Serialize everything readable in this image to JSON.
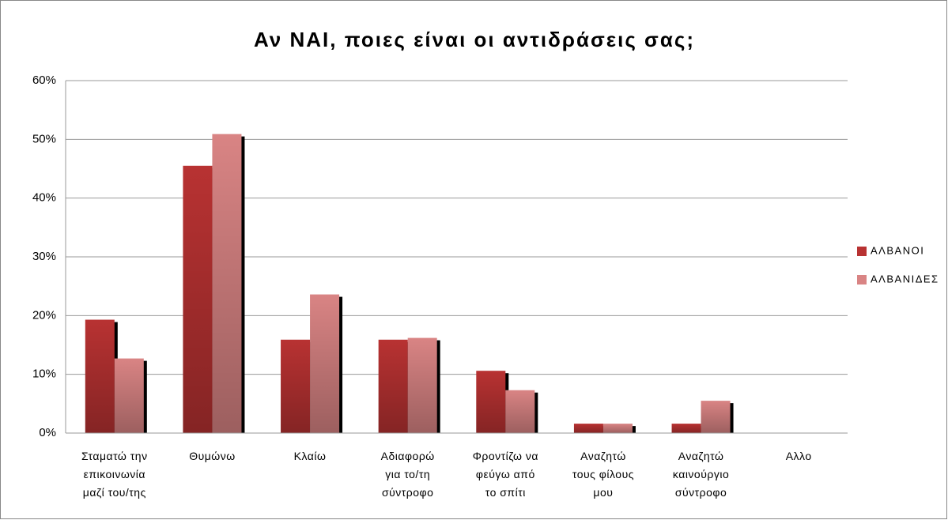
{
  "chart_data": {
    "type": "bar",
    "title": "Αν ΝΑΙ, ποιες είναι οι αντιδράσεις σας;",
    "categories": [
      "Σταματώ την\nεπικοινωνία\nμαζί του/της",
      "Θυμώνω",
      "Κλαίω",
      "Αδιαφορώ\nγια το/τη\nσύντροφο",
      "Φροντίζω να\nφεύγω από\nτο σπίτι",
      "Αναζητώ\nτους φίλους\nμου",
      "Αναζητώ\nκαινούργιο\nσύντροφο",
      "Αλλο"
    ],
    "series": [
      {
        "name": "ΑΛΒΑΝΟΙ",
        "color": "#b83232",
        "values": [
          19.3,
          45.5,
          15.9,
          15.9,
          10.6,
          1.6,
          1.6,
          0
        ]
      },
      {
        "name": "ΑΛΒΑΝΙΔΕΣ",
        "color": "#d98484",
        "values": [
          12.7,
          50.9,
          23.6,
          16.2,
          7.3,
          1.6,
          5.5,
          0
        ]
      }
    ],
    "ylim": [
      0,
      60
    ],
    "yticks": [
      {
        "value": 0,
        "label": "0%"
      },
      {
        "value": 10,
        "label": "10%"
      },
      {
        "value": 20,
        "label": "20%"
      },
      {
        "value": 30,
        "label": "30%"
      },
      {
        "value": 40,
        "label": "40%"
      },
      {
        "value": 50,
        "label": "50%"
      },
      {
        "value": 60,
        "label": "60%"
      }
    ],
    "grid": true,
    "legend": "right"
  }
}
